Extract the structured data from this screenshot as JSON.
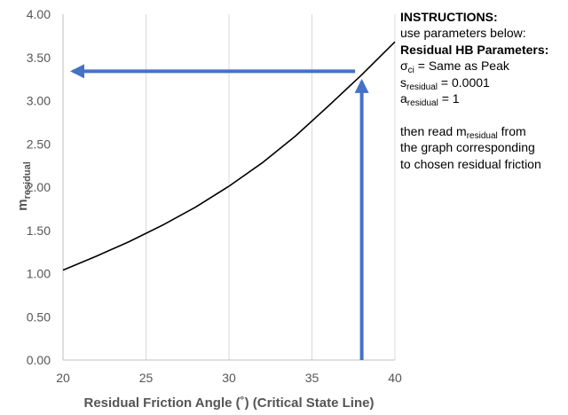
{
  "chart_data": {
    "type": "line",
    "xlabel": "Residual Friction Angle (˚) (Critical State Line)",
    "ylabel": "m",
    "ylabel_sub": "residual",
    "xlim": [
      20,
      40
    ],
    "ylim": [
      0,
      4
    ],
    "x_ticks": [
      "20",
      "25",
      "30",
      "35",
      "40"
    ],
    "y_ticks": [
      "0.00",
      "0.50",
      "1.00",
      "1.50",
      "2.00",
      "2.50",
      "3.00",
      "3.50",
      "4.00"
    ],
    "grid": "vertical",
    "series": [
      {
        "x": [
          20,
          22,
          24,
          26,
          28,
          30,
          32,
          34,
          36,
          38,
          40
        ],
        "y": [
          1.04,
          1.2,
          1.37,
          1.56,
          1.77,
          2.01,
          2.28,
          2.59,
          2.94,
          3.3,
          3.68
        ],
        "color": "#000000"
      }
    ],
    "annotations": {
      "arrow_color": "#4472c4",
      "vertical_arrow": {
        "x": 38.0,
        "y_from": 0.0,
        "y_to": 3.22
      },
      "horizontal_arrow": {
        "y": 3.34,
        "x_from": 37.6,
        "x_to": 20.6
      }
    }
  },
  "instructions": {
    "heading": "INSTRUCTIONS:",
    "line1": "use parameters below:",
    "params_heading": "Residual HB Parameters:",
    "sigma_symbol": "σ",
    "sigma_sub": "ci",
    "sigma_value": " = Same as Peak",
    "s_symbol": "s",
    "s_sub": "residual",
    "s_value": " = 0.0001",
    "a_symbol": "a",
    "a_sub": "residual",
    "a_value": " = 1",
    "read_line1_pre": "then read m",
    "read_line1_sub": "residual",
    "read_line1_post": " from",
    "read_line2": "the graph corresponding",
    "read_line3": "to chosen residual friction"
  }
}
